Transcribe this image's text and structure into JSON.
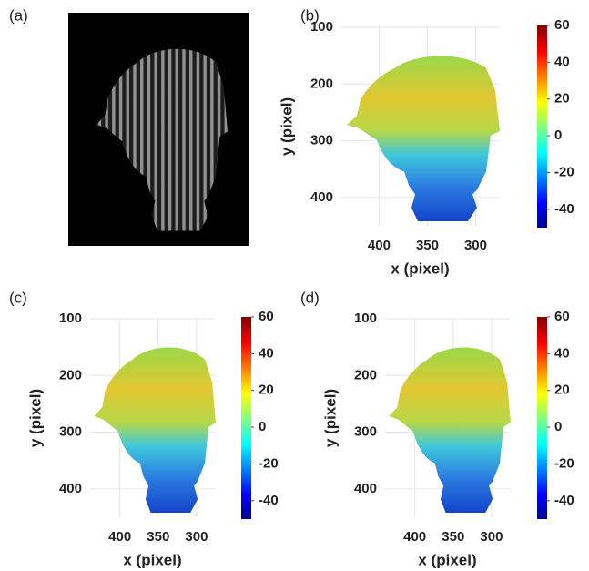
{
  "chart_data": [
    {
      "type": "photo",
      "label": "(a)"
    },
    {
      "type": "image",
      "label": "(b)",
      "x_label": "x (pixel)",
      "y_label": "y (pixel)",
      "xlim": [
        440,
        275
      ],
      "xticks": [
        400,
        350,
        300
      ],
      "ylim": [
        100,
        450
      ],
      "yticks": [
        100,
        200,
        300,
        400
      ],
      "clim": [
        -50,
        60
      ],
      "cticks": [
        60,
        40,
        20,
        0,
        -20,
        -40
      ],
      "grid": true
    },
    {
      "type": "image",
      "label": "(c)",
      "x_label": "x (pixel)",
      "y_label": "y (pixel)",
      "xlim": [
        440,
        275
      ],
      "xticks": [
        400,
        350,
        300
      ],
      "ylim": [
        100,
        450
      ],
      "yticks": [
        100,
        200,
        300,
        400
      ],
      "clim": [
        -50,
        60
      ],
      "cticks": [
        60,
        40,
        20,
        0,
        -20,
        -40
      ],
      "grid": true
    },
    {
      "type": "image",
      "label": "(d)",
      "x_label": "x (pixel)",
      "y_label": "y (pixel)",
      "xlim": [
        440,
        275
      ],
      "xticks": [
        400,
        350,
        300
      ],
      "ylim": [
        100,
        450
      ],
      "yticks": [
        100,
        200,
        300,
        400
      ],
      "clim": [
        -50,
        60
      ],
      "cticks": [
        60,
        40,
        20,
        0,
        -20,
        -40
      ],
      "grid": true
    }
  ]
}
